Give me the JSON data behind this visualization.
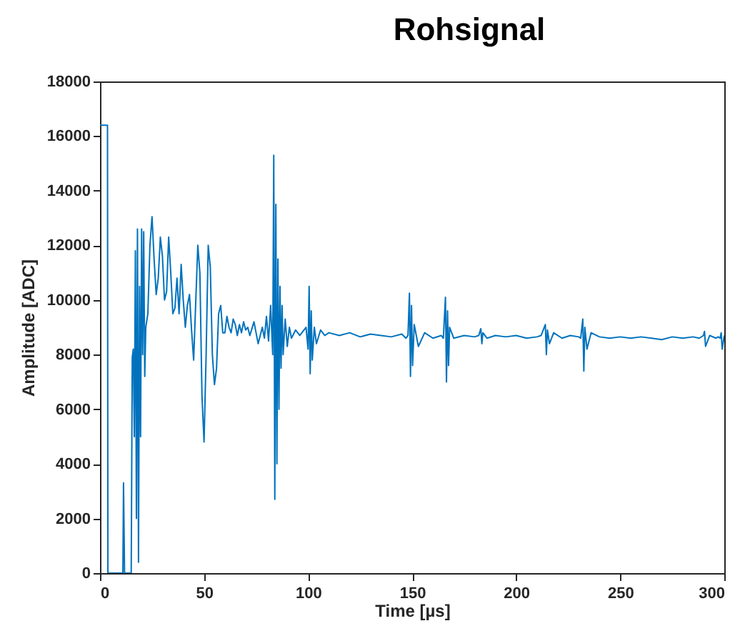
{
  "chart_data": {
    "type": "line",
    "title": "Rohsignal",
    "xlabel": "Time [µs]",
    "ylabel": "Amplitude [ADC]",
    "xlim": [
      0,
      300
    ],
    "xticks": [
      0,
      50,
      100,
      150,
      200,
      250,
      300
    ],
    "ylim": [
      0,
      18000
    ],
    "yticks": [
      0,
      2000,
      4000,
      6000,
      8000,
      10000,
      12000,
      14000,
      16000,
      18000
    ],
    "grid": false,
    "legend": false,
    "x": [
      0,
      3.6,
      3.8,
      11,
      11.3,
      11.8,
      15,
      15.5,
      16,
      16.5,
      17,
      17.5,
      18,
      18.5,
      19,
      19.5,
      20,
      20.5,
      21,
      21.5,
      22,
      23,
      24,
      25,
      26,
      27,
      28,
      29,
      30,
      31,
      32,
      33,
      34,
      35,
      36,
      37,
      38,
      39,
      40,
      41,
      42,
      43,
      44,
      45,
      47,
      48,
      49,
      50,
      51,
      52,
      53,
      54,
      55,
      56,
      57,
      58,
      59,
      60,
      61,
      62,
      63,
      64,
      65,
      66,
      67,
      68,
      69,
      70,
      71,
      72,
      74,
      76,
      78,
      79,
      80,
      81,
      82,
      83,
      83.5,
      84,
      84.5,
      85,
      85.5,
      86,
      86.5,
      87,
      87.5,
      88,
      89,
      90,
      91,
      92,
      94,
      96,
      98,
      99,
      100,
      100.5,
      101,
      101.5,
      102,
      103,
      104,
      106,
      108,
      110,
      115,
      120,
      125,
      130,
      135,
      140,
      145,
      147,
      148,
      148.7,
      149.2,
      149.7,
      150.2,
      151,
      153,
      156,
      160,
      164,
      165,
      166,
      166.5,
      167,
      167.5,
      168,
      170,
      175,
      180,
      182,
      183,
      183.5,
      184,
      186,
      190,
      195,
      200,
      205,
      210,
      212,
      214,
      214.5,
      215,
      216,
      218,
      222,
      226,
      230,
      231,
      232,
      232.5,
      233,
      234,
      236,
      240,
      245,
      250,
      255,
      260,
      265,
      270,
      275,
      280,
      285,
      288,
      290,
      290.5,
      291,
      293,
      296,
      297,
      298,
      298.5,
      299,
      300
    ],
    "series": [
      {
        "color": "#0072bd",
        "values": [
          16400,
          16400,
          0,
          0,
          3300,
          0,
          0,
          7900,
          8200,
          5000,
          11800,
          2000,
          12600,
          400,
          10500,
          5000,
          12600,
          8000,
          12500,
          7200,
          9000,
          9500,
          12000,
          13050,
          11500,
          10200,
          10800,
          12300,
          11600,
          10000,
          10300,
          12300,
          11000,
          9500,
          9700,
          10800,
          9500,
          11300,
          10000,
          9000,
          9800,
          10200,
          8900,
          7800,
          12000,
          11000,
          6500,
          4800,
          8000,
          12000,
          11200,
          8000,
          6900,
          7500,
          9500,
          9800,
          8800,
          8800,
          9400,
          9000,
          8800,
          9300,
          9100,
          8700,
          9100,
          8800,
          9200,
          8900,
          9000,
          8700,
          9200,
          8400,
          9000,
          8600,
          9400,
          8500,
          9800,
          8000,
          15300,
          2700,
          13500,
          4000,
          11500,
          6000,
          10500,
          7500,
          9800,
          8000,
          9300,
          8300,
          9000,
          8600,
          8900,
          8700,
          8900,
          9000,
          8200,
          10500,
          7300,
          9600,
          7800,
          9000,
          8400,
          8900,
          8700,
          8800,
          8700,
          8800,
          8650,
          8750,
          8700,
          8650,
          8750,
          8600,
          8700,
          10250,
          7200,
          9800,
          7600,
          9100,
          8300,
          8800,
          8600,
          8700,
          8600,
          10100,
          7000,
          9600,
          7600,
          9000,
          8600,
          8700,
          8650,
          8700,
          8950,
          8400,
          8800,
          8600,
          8700,
          8650,
          8700,
          8600,
          8650,
          8700,
          9100,
          8000,
          8900,
          8400,
          8800,
          8600,
          8700,
          8650,
          8600,
          9300,
          7400,
          9000,
          8200,
          8800,
          8650,
          8600,
          8650,
          8600,
          8650,
          8600,
          8550,
          8650,
          8600,
          8650,
          8600,
          8700,
          8850,
          8300,
          8700,
          8600,
          8650,
          8600,
          8800,
          8200,
          8700
        ]
      }
    ]
  }
}
